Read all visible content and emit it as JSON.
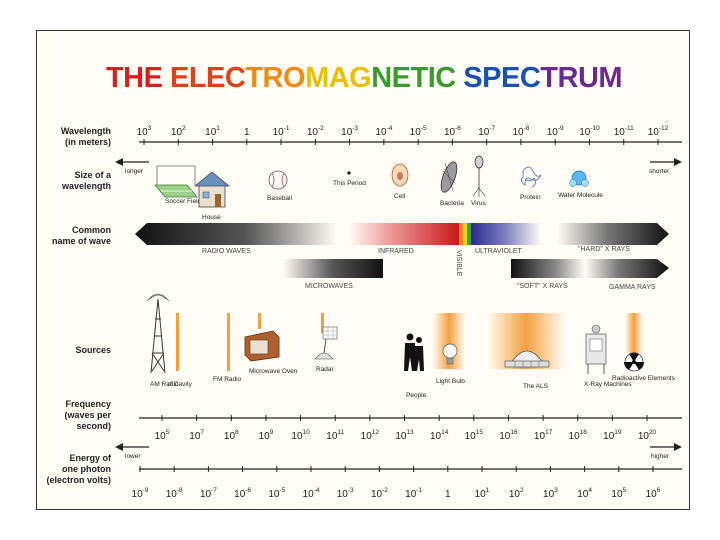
{
  "title": "THE ELECTROMAGNETIC SPECTRUM",
  "title_segments": [
    {
      "text": "THE ",
      "color": "#d82020"
    },
    {
      "text": "ELEC",
      "color": "#e0401a"
    },
    {
      "text": "TRO",
      "color": "#f08a10"
    },
    {
      "text": "MAG",
      "color": "#e8c000"
    },
    {
      "text": "NETIC ",
      "color": "#3a9a30"
    },
    {
      "text": "SPEC",
      "color": "#1a50b0"
    },
    {
      "text": "TRUM",
      "color": "#6a2a90"
    }
  ],
  "rows": {
    "wavelength": [
      "Wavelength",
      "(in meters)"
    ],
    "size": [
      "Size of a",
      "wavelength"
    ],
    "common": [
      "Common",
      "name of wave"
    ],
    "sources": [
      "Sources"
    ],
    "frequency": [
      "Frequency",
      "(waves per",
      "second)"
    ],
    "energy": [
      "Energy of",
      "one photon",
      "(electron volts)"
    ]
  },
  "wavelength_ticks": [
    {
      "base": "10",
      "exp": "3"
    },
    {
      "base": "10",
      "exp": "2"
    },
    {
      "base": "10",
      "exp": "1"
    },
    {
      "base": "1",
      "exp": ""
    },
    {
      "base": "10",
      "exp": "-1"
    },
    {
      "base": "10",
      "exp": "-2"
    },
    {
      "base": "10",
      "exp": "-3"
    },
    {
      "base": "10",
      "exp": "-4"
    },
    {
      "base": "10",
      "exp": "-5"
    },
    {
      "base": "10",
      "exp": "-6"
    },
    {
      "base": "10",
      "exp": "-7"
    },
    {
      "base": "10",
      "exp": "-8"
    },
    {
      "base": "10",
      "exp": "-9"
    },
    {
      "base": "10",
      "exp": "-10"
    },
    {
      "base": "10",
      "exp": "-11"
    },
    {
      "base": "10",
      "exp": "-12"
    }
  ],
  "frequency_ticks": [
    {
      "base": "10",
      "exp": "5"
    },
    {
      "base": "10",
      "exp": "7"
    },
    {
      "base": "10",
      "exp": "8"
    },
    {
      "base": "10",
      "exp": "9"
    },
    {
      "base": "10",
      "exp": "10"
    },
    {
      "base": "10",
      "exp": "11"
    },
    {
      "base": "10",
      "exp": "12"
    },
    {
      "base": "10",
      "exp": "13"
    },
    {
      "base": "10",
      "exp": "14"
    },
    {
      "base": "10",
      "exp": "15"
    },
    {
      "base": "10",
      "exp": "16"
    },
    {
      "base": "10",
      "exp": "17"
    },
    {
      "base": "10",
      "exp": "18"
    },
    {
      "base": "10",
      "exp": "19"
    },
    {
      "base": "10",
      "exp": "20"
    }
  ],
  "energy_ticks": [
    {
      "base": "10",
      "exp": "-9"
    },
    {
      "base": "10",
      "exp": "-8"
    },
    {
      "base": "10",
      "exp": "-7"
    },
    {
      "base": "10",
      "exp": "-6"
    },
    {
      "base": "10",
      "exp": "-5"
    },
    {
      "base": "10",
      "exp": "-4"
    },
    {
      "base": "10",
      "exp": "-3"
    },
    {
      "base": "10",
      "exp": "-2"
    },
    {
      "base": "10",
      "exp": "-1"
    },
    {
      "base": "1",
      "exp": ""
    },
    {
      "base": "10",
      "exp": "1"
    },
    {
      "base": "10",
      "exp": "2"
    },
    {
      "base": "10",
      "exp": "3"
    },
    {
      "base": "10",
      "exp": "4"
    },
    {
      "base": "10",
      "exp": "5"
    },
    {
      "base": "10",
      "exp": "6"
    }
  ],
  "arrows": {
    "wave_left": "longer",
    "wave_right": "shorter",
    "freq_left": "lower",
    "freq_right": "higher"
  },
  "size_objects": [
    {
      "key": "soccer",
      "label": "Soccer Field"
    },
    {
      "key": "house",
      "label": "House"
    },
    {
      "key": "baseball",
      "label": "Baseball"
    },
    {
      "key": "period",
      "label": "This Period"
    },
    {
      "key": "cell",
      "label": "Cell"
    },
    {
      "key": "bacteria",
      "label": "Bacteria"
    },
    {
      "key": "virus",
      "label": "Virus"
    },
    {
      "key": "protein",
      "label": "Protein"
    },
    {
      "key": "water",
      "label": "Water Molecule"
    }
  ],
  "wave_names": {
    "radio": "RADIO WAVES",
    "infrared": "INFRARED",
    "visible": "VISIBLE",
    "ultraviolet": "ULTRAVIOLET",
    "hard_xrays": "\"HARD\" X RAYS",
    "microwaves": "MICROWAVES",
    "soft_xrays": "\"SOFT\" X RAYS",
    "gamma": "GAMMA RAYS"
  },
  "sources": [
    {
      "key": "am",
      "label": "AM Radio"
    },
    {
      "key": "rf",
      "label": "rf Cavity"
    },
    {
      "key": "fm",
      "label": "FM Radio"
    },
    {
      "key": "microwave",
      "label": "Microwave Oven"
    },
    {
      "key": "radar",
      "label": "Radar"
    },
    {
      "key": "people",
      "label": "People"
    },
    {
      "key": "bulb",
      "label": "Light Bulb"
    },
    {
      "key": "als",
      "label": "The ALS"
    },
    {
      "key": "xray",
      "label": "X-Ray Machines"
    },
    {
      "key": "radioactive",
      "label": "Radioactive Elements"
    }
  ],
  "colors": {
    "band_dark": "#111111",
    "source_bar": "#f5a040",
    "infrared": "#d02020",
    "visible_yellow": "#f0d020",
    "ultraviolet": "#3030a0"
  }
}
